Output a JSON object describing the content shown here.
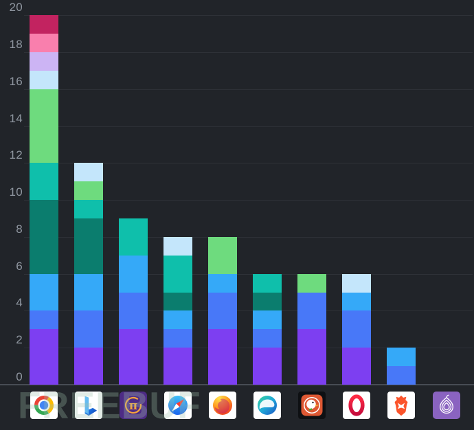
{
  "watermark": {
    "text": "FREEBUF"
  },
  "colors": {
    "background": "#212429",
    "gridline": "#2e3137",
    "axis_line": "#474c54",
    "tick_label": "#9097a1",
    "watermark": "#9ec0ac"
  },
  "y_axis": {
    "ticks": [
      "0",
      "2",
      "4",
      "6",
      "8",
      "10",
      "12",
      "14",
      "16",
      "18",
      "20"
    ]
  },
  "x_axis": {
    "icons": [
      "chrome",
      "bing",
      "pi-browser",
      "safari",
      "firefox",
      "edge",
      "duckduckgo",
      "opera",
      "brave",
      "tor"
    ]
  },
  "chart_data": {
    "type": "bar",
    "stacked": true,
    "title": "",
    "xlabel": "",
    "ylabel": "",
    "ylim": [
      0,
      20
    ],
    "grid": true,
    "legend": "none",
    "categories": [
      "Chrome",
      "Bing",
      "Pi Browser",
      "Safari",
      "Firefox",
      "Edge",
      "DuckDuckGo",
      "Opera",
      "Brave",
      "Tor"
    ],
    "totals": [
      20,
      12,
      9,
      8,
      8,
      6,
      6,
      6,
      2,
      0
    ],
    "segment_palette": {
      "purple": "#7d3ff1",
      "royal-blue": "#4878f8",
      "sky-blue": "#35a9f8",
      "dark-teal": "#0b7d6e",
      "teal": "#0fbfab",
      "green": "#6edb7e",
      "pale-blue": "#c4e6fb",
      "lavender": "#ccb4f4",
      "pink": "#f97fad",
      "crimson": "#c22360"
    },
    "bars": [
      {
        "category": "Chrome",
        "segments": [
          {
            "color": "purple",
            "value": 3
          },
          {
            "color": "royal-blue",
            "value": 1
          },
          {
            "color": "sky-blue",
            "value": 2
          },
          {
            "color": "dark-teal",
            "value": 4
          },
          {
            "color": "teal",
            "value": 2
          },
          {
            "color": "green",
            "value": 4
          },
          {
            "color": "pale-blue",
            "value": 1
          },
          {
            "color": "lavender",
            "value": 1
          },
          {
            "color": "pink",
            "value": 1
          },
          {
            "color": "crimson",
            "value": 1
          }
        ]
      },
      {
        "category": "Bing",
        "segments": [
          {
            "color": "purple",
            "value": 2
          },
          {
            "color": "royal-blue",
            "value": 2
          },
          {
            "color": "sky-blue",
            "value": 2
          },
          {
            "color": "dark-teal",
            "value": 3
          },
          {
            "color": "teal",
            "value": 1
          },
          {
            "color": "green",
            "value": 1
          },
          {
            "color": "pale-blue",
            "value": 1
          }
        ]
      },
      {
        "category": "Pi Browser",
        "segments": [
          {
            "color": "purple",
            "value": 3
          },
          {
            "color": "royal-blue",
            "value": 2
          },
          {
            "color": "sky-blue",
            "value": 2
          },
          {
            "color": "teal",
            "value": 2
          }
        ]
      },
      {
        "category": "Safari",
        "segments": [
          {
            "color": "purple",
            "value": 2
          },
          {
            "color": "royal-blue",
            "value": 1
          },
          {
            "color": "sky-blue",
            "value": 1
          },
          {
            "color": "dark-teal",
            "value": 1
          },
          {
            "color": "teal",
            "value": 2
          },
          {
            "color": "pale-blue",
            "value": 1
          }
        ]
      },
      {
        "category": "Firefox",
        "segments": [
          {
            "color": "purple",
            "value": 3
          },
          {
            "color": "royal-blue",
            "value": 2
          },
          {
            "color": "sky-blue",
            "value": 1
          },
          {
            "color": "green",
            "value": 2
          }
        ]
      },
      {
        "category": "Edge",
        "segments": [
          {
            "color": "purple",
            "value": 2
          },
          {
            "color": "royal-blue",
            "value": 1
          },
          {
            "color": "sky-blue",
            "value": 1
          },
          {
            "color": "dark-teal",
            "value": 1
          },
          {
            "color": "teal",
            "value": 1
          }
        ]
      },
      {
        "category": "DuckDuckGo",
        "segments": [
          {
            "color": "purple",
            "value": 3
          },
          {
            "color": "royal-blue",
            "value": 2
          },
          {
            "color": "green",
            "value": 1
          }
        ]
      },
      {
        "category": "Opera",
        "segments": [
          {
            "color": "purple",
            "value": 2
          },
          {
            "color": "royal-blue",
            "value": 2
          },
          {
            "color": "sky-blue",
            "value": 1
          },
          {
            "color": "pale-blue",
            "value": 1
          }
        ]
      },
      {
        "category": "Brave",
        "segments": [
          {
            "color": "royal-blue",
            "value": 1
          },
          {
            "color": "sky-blue",
            "value": 1
          }
        ]
      },
      {
        "category": "Tor",
        "segments": []
      }
    ]
  }
}
